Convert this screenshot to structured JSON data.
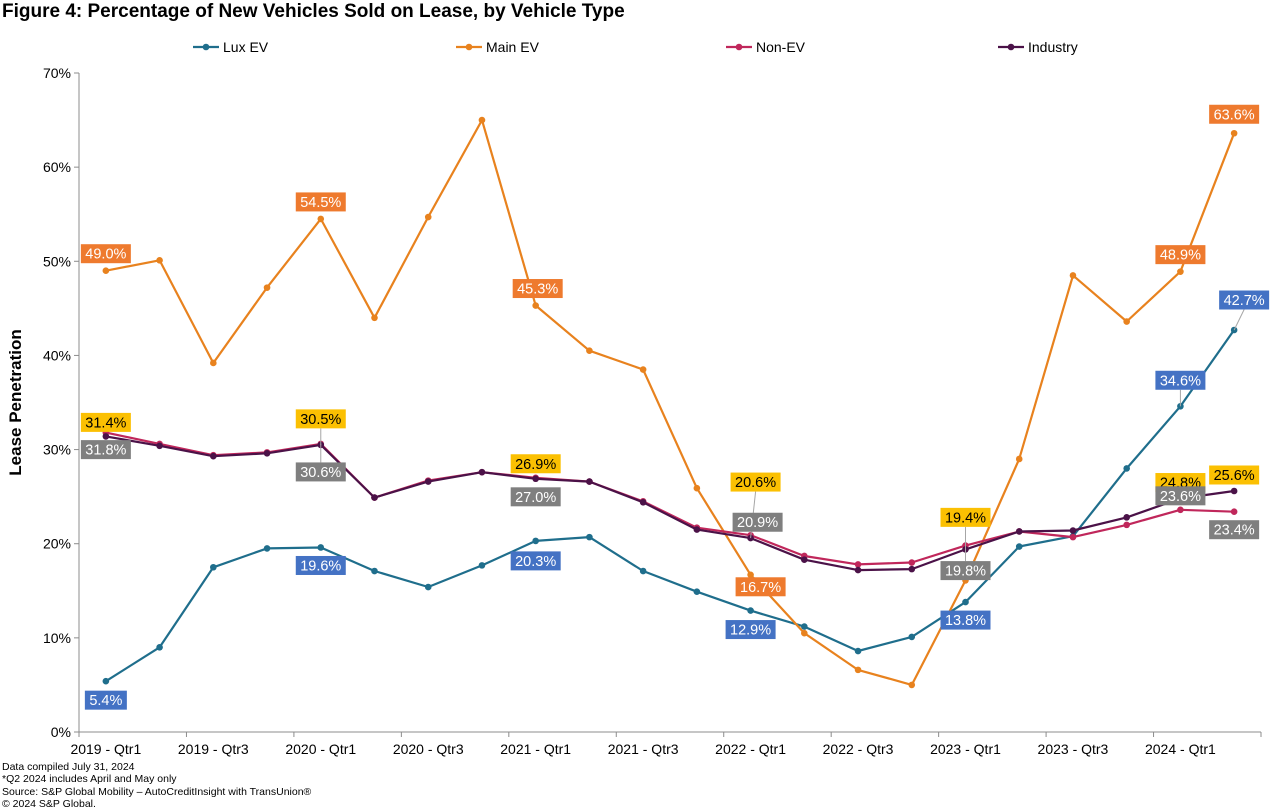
{
  "chart_data": {
    "type": "line",
    "title": "Figure 4: Percentage of New Vehicles Sold on Lease, by Vehicle Type",
    "xlabel": "",
    "ylabel": "Lease Penetration",
    "ylim": [
      0,
      70
    ],
    "yticks": [
      0,
      10,
      20,
      30,
      40,
      50,
      60,
      70
    ],
    "ytick_labels": [
      "0%",
      "10%",
      "20%",
      "30%",
      "40%",
      "50%",
      "60%",
      "70%"
    ],
    "grid": false,
    "legend_position": "top",
    "categories": [
      "2019 - Qtr1",
      "2019 - Qtr2",
      "2019 - Qtr3",
      "2019 - Qtr4",
      "2020 - Qtr1",
      "2020 - Qtr2",
      "2020 - Qtr3",
      "2020 - Qtr4",
      "2021 - Qtr1",
      "2021 - Qtr2",
      "2021 - Qtr3",
      "2021 - Qtr4",
      "2022 - Qtr1",
      "2022 - Qtr2",
      "2022 - Qtr3",
      "2022 - Qtr4",
      "2023 - Qtr1",
      "2023 - Qtr2",
      "2023 - Qtr3",
      "2023 - Qtr4",
      "2024 - Qtr1",
      "2024 - Qtr2"
    ],
    "xtick_labels": [
      "2019 - Qtr1",
      "2019 - Qtr3",
      "2020 - Qtr1",
      "2020 - Qtr3",
      "2021 - Qtr1",
      "2021 - Qtr3",
      "2022 - Qtr1",
      "2022 - Qtr3",
      "2023 - Qtr1",
      "2023 - Qtr3",
      "2024 - Qtr1"
    ],
    "series": [
      {
        "name": "Lux EV",
        "color": "#1f6e8c",
        "values": [
          5.4,
          9.0,
          17.5,
          19.5,
          19.6,
          17.1,
          15.4,
          17.7,
          20.3,
          20.7,
          17.1,
          14.9,
          12.9,
          11.2,
          8.6,
          10.1,
          13.8,
          19.7,
          20.8,
          28.0,
          34.6,
          42.7
        ]
      },
      {
        "name": "Main EV",
        "color": "#e8821e",
        "values": [
          49.0,
          50.1,
          39.2,
          47.2,
          54.5,
          44.0,
          54.7,
          65.0,
          45.3,
          40.5,
          38.5,
          25.9,
          16.7,
          10.5,
          6.6,
          5.0,
          16.1,
          29.0,
          48.5,
          43.6,
          48.9,
          63.6
        ]
      },
      {
        "name": "Non-EV",
        "color": "#c0275b",
        "values": [
          31.8,
          30.6,
          29.4,
          29.7,
          30.6,
          24.9,
          26.7,
          27.6,
          27.0,
          26.6,
          24.5,
          21.7,
          20.9,
          18.7,
          17.8,
          18.0,
          19.8,
          21.3,
          20.7,
          22.0,
          23.6,
          23.4
        ]
      },
      {
        "name": "Industry",
        "color": "#4b1248",
        "values": [
          31.4,
          30.4,
          29.3,
          29.6,
          30.5,
          24.9,
          26.6,
          27.6,
          26.9,
          26.6,
          24.4,
          21.5,
          20.6,
          18.3,
          17.2,
          17.3,
          19.4,
          21.3,
          21.4,
          22.8,
          24.8,
          25.6
        ]
      }
    ],
    "data_labels": [
      {
        "series": "Main EV",
        "index": 0,
        "text": "49.0%",
        "bg": "#ee7a2e"
      },
      {
        "series": "Main EV",
        "index": 4,
        "text": "54.5%",
        "bg": "#ee7a2e"
      },
      {
        "series": "Main EV",
        "index": 8,
        "text": "45.3%",
        "bg": "#ee7a2e"
      },
      {
        "series": "Main EV",
        "index": 12,
        "text": "16.7%",
        "bg": "#ee7a2e"
      },
      {
        "series": "Main EV",
        "index": 20,
        "text": "48.9%",
        "bg": "#ee7a2e"
      },
      {
        "series": "Main EV",
        "index": 21,
        "text": "63.6%",
        "bg": "#ee7a2e"
      },
      {
        "series": "Industry",
        "index": 0,
        "text": "31.4%",
        "bg": "#fbc002"
      },
      {
        "series": "Industry",
        "index": 4,
        "text": "30.5%",
        "bg": "#fbc002"
      },
      {
        "series": "Industry",
        "index": 8,
        "text": "26.9%",
        "bg": "#fbc002"
      },
      {
        "series": "Industry",
        "index": 12,
        "text": "20.6%",
        "bg": "#fbc002"
      },
      {
        "series": "Industry",
        "index": 16,
        "text": "19.4%",
        "bg": "#fbc002"
      },
      {
        "series": "Industry",
        "index": 20,
        "text": "24.8%",
        "bg": "#fbc002"
      },
      {
        "series": "Industry",
        "index": 21,
        "text": "25.6%",
        "bg": "#fbc002"
      },
      {
        "series": "Non-EV",
        "index": 0,
        "text": "31.8%",
        "bg": "#7f7f7f"
      },
      {
        "series": "Non-EV",
        "index": 4,
        "text": "30.6%",
        "bg": "#7f7f7f"
      },
      {
        "series": "Non-EV",
        "index": 8,
        "text": "27.0%",
        "bg": "#7f7f7f"
      },
      {
        "series": "Non-EV",
        "index": 12,
        "text": "20.9%",
        "bg": "#7f7f7f"
      },
      {
        "series": "Non-EV",
        "index": 16,
        "text": "19.8%",
        "bg": "#7f7f7f"
      },
      {
        "series": "Non-EV",
        "index": 20,
        "text": "23.6%",
        "bg": "#7f7f7f"
      },
      {
        "series": "Non-EV",
        "index": 21,
        "text": "23.4%",
        "bg": "#7f7f7f"
      },
      {
        "series": "Lux EV",
        "index": 0,
        "text": "5.4%",
        "bg": "#4472c4"
      },
      {
        "series": "Lux EV",
        "index": 4,
        "text": "19.6%",
        "bg": "#4472c4"
      },
      {
        "series": "Lux EV",
        "index": 8,
        "text": "20.3%",
        "bg": "#4472c4"
      },
      {
        "series": "Lux EV",
        "index": 12,
        "text": "12.9%",
        "bg": "#4472c4"
      },
      {
        "series": "Lux EV",
        "index": 16,
        "text": "13.8%",
        "bg": "#4472c4"
      },
      {
        "series": "Lux EV",
        "index": 20,
        "text": "34.6%",
        "bg": "#4472c4"
      },
      {
        "series": "Lux EV",
        "index": 21,
        "text": "42.7%",
        "bg": "#4472c4"
      }
    ]
  },
  "footnotes": [
    "Data compiled July 31, 2024",
    "*Q2 2024 includes April and May only",
    "Source: S&P Global Mobility – AutoCreditInsight with TransUnion®",
    "© 2024 S&P Global."
  ]
}
